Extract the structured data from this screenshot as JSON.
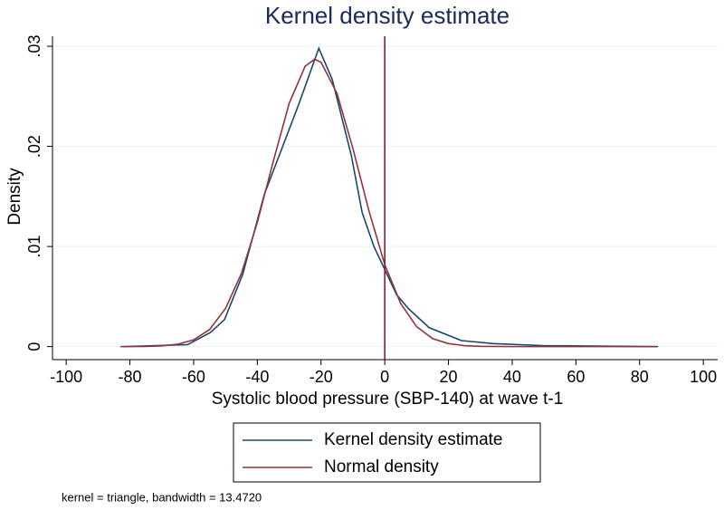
{
  "chart_data": {
    "type": "line",
    "title": "Kernel density estimate",
    "x_label": "Systolic blood pressure (SBP-140) at wave t-1",
    "y_label": "Density",
    "note": "kernel = triangle, bandwidth = 13.4720",
    "xlim": [
      -104.3,
      104.5
    ],
    "ylim": [
      -0.0013,
      0.031
    ],
    "xticks": [
      -100,
      -80,
      -60,
      -40,
      -20,
      0,
      20,
      40,
      60,
      80,
      100
    ],
    "yticks": [
      {
        "value": 0,
        "label": "0"
      },
      {
        "value": 0.01,
        "label": ".01"
      },
      {
        "value": 0.02,
        "label": ".02"
      },
      {
        "value": 0.03,
        "label": ".03"
      }
    ],
    "grid": true,
    "xline": 0,
    "xline_color": "#8b1a3a",
    "legend_position": "bottom",
    "series": [
      {
        "name": "Kernel density estimate",
        "color": "#1a476f",
        "x": [
          -82.1,
          -61.9,
          -54.8,
          -50.3,
          -44.6,
          -37.8,
          -27,
          -20.7,
          -16.5,
          -10.5,
          -7.1,
          -3.4,
          3.7,
          7.4,
          13.9,
          24.1,
          34.1,
          49.7,
          85.8
        ],
        "values": [
          0,
          0.0002,
          0.0014,
          0.0027,
          0.0072,
          0.0152,
          0.0242,
          0.0298,
          0.0267,
          0.0191,
          0.0134,
          0.01,
          0.0052,
          0.0038,
          0.0019,
          0.0006,
          0.0003,
          0.0001,
          0
        ]
      },
      {
        "name": "Normal density",
        "color": "#90353b",
        "x": [
          -83,
          -75,
          -70,
          -65,
          -60,
          -55,
          -50,
          -45,
          -40,
          -35,
          -30,
          -25,
          -22,
          -20,
          -15,
          -10,
          -5,
          0,
          5,
          10,
          15,
          20,
          25,
          30,
          40,
          60,
          85
        ],
        "values": [
          0,
          2e-05,
          7e-05,
          0.00024,
          0.00068,
          0.0017,
          0.0038,
          0.0073,
          0.0124,
          0.0185,
          0.0243,
          0.028,
          0.0287,
          0.0284,
          0.0253,
          0.0198,
          0.0136,
          0.0082,
          0.0043,
          0.002,
          0.0008,
          0.0003,
          0.0001,
          3e-05,
          0,
          0,
          0
        ]
      }
    ]
  }
}
